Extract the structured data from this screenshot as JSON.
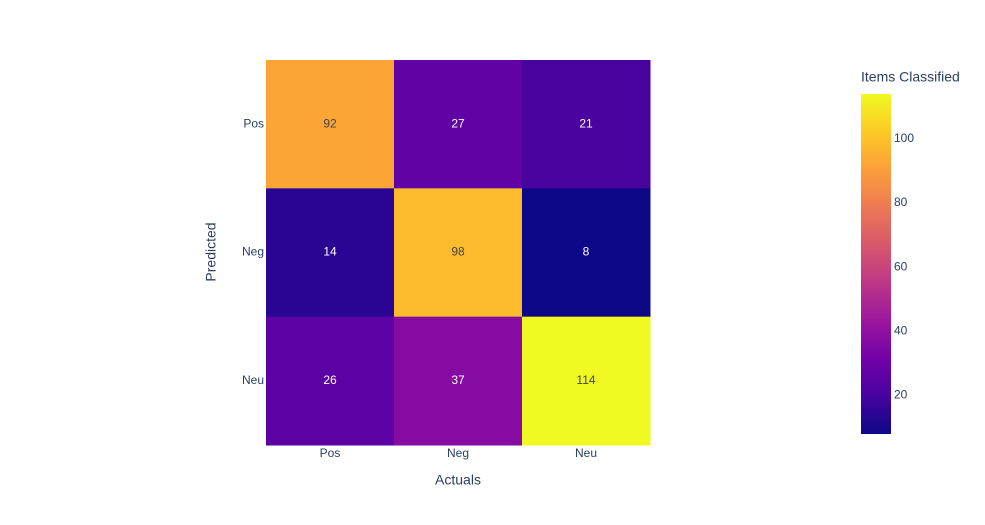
{
  "chart_data": {
    "type": "heatmap",
    "x": [
      "Pos",
      "Neg",
      "Neu"
    ],
    "y": [
      "Pos",
      "Neg",
      "Neu"
    ],
    "z": [
      [
        92,
        27,
        21
      ],
      [
        14,
        98,
        8
      ],
      [
        26,
        37,
        114
      ]
    ],
    "x_label": "Actuals",
    "y_label": "Predicted",
    "colorbar_title": "Items Classified",
    "zlim": [
      8,
      114
    ],
    "colorbar_ticks": [
      20,
      40,
      60,
      80,
      100
    ],
    "colorscale": [
      "#0d0887",
      "#46039f",
      "#7201a8",
      "#9c179e",
      "#bd3786",
      "#d8576b",
      "#ed7953",
      "#fb9f3a",
      "#fdca26",
      "#f0f921"
    ]
  }
}
